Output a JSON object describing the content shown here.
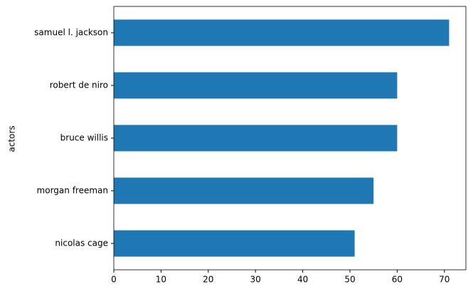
{
  "chart_data": {
    "type": "barh",
    "ylabel": "actors",
    "categories": [
      "nicolas cage",
      "morgan freeman",
      "bruce willis",
      "robert de niro",
      "samuel l. jackson"
    ],
    "values": [
      51,
      55,
      60,
      60,
      71
    ],
    "color": "#1f77b4",
    "xlim": [
      0,
      74.55
    ],
    "xticks": [
      0,
      10,
      20,
      30,
      40,
      50,
      60,
      70
    ]
  }
}
